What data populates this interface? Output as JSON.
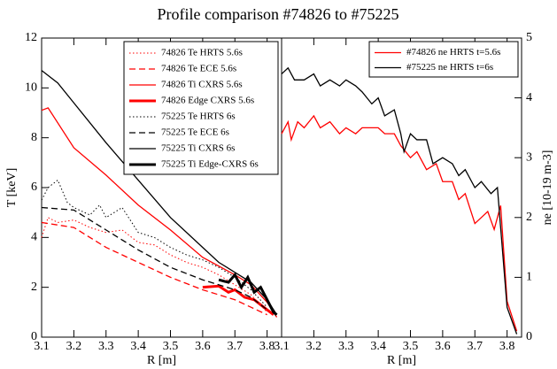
{
  "title": "Profile comparison #74826 to #75225",
  "chart_data": [
    {
      "type": "line",
      "xlabel": "R [m]",
      "ylabel": "T [keV]",
      "y_axis_side": "left",
      "legend": "upper right",
      "xlim": [
        3.1,
        3.845
      ],
      "xticks": [
        3.1,
        3.2,
        3.3,
        3.4,
        3.5,
        3.6,
        3.7,
        3.8
      ],
      "ylim": [
        0,
        12
      ],
      "yticks": [
        0,
        2,
        4,
        6,
        8,
        10,
        12
      ],
      "series": [
        {
          "name": "74826 Te HRTS 5.6s",
          "color": "#ff0000",
          "dash": "dotted",
          "width": 1,
          "x": [
            3.1,
            3.12,
            3.15,
            3.2,
            3.25,
            3.3,
            3.35,
            3.4,
            3.45,
            3.5,
            3.55,
            3.6,
            3.65,
            3.7,
            3.75,
            3.8
          ],
          "values": [
            4.0,
            4.8,
            4.6,
            4.7,
            4.4,
            4.2,
            4.3,
            3.8,
            3.7,
            3.3,
            3.0,
            2.8,
            2.5,
            2.1,
            1.7,
            1.0
          ]
        },
        {
          "name": "74826 Te ECE 5.6s",
          "color": "#ff0000",
          "dash": "dashed",
          "width": 1.3,
          "x": [
            3.1,
            3.2,
            3.3,
            3.4,
            3.5,
            3.6,
            3.7,
            3.75,
            3.8
          ],
          "values": [
            4.6,
            4.4,
            3.6,
            3.0,
            2.4,
            1.9,
            1.5,
            1.2,
            0.9
          ]
        },
        {
          "name": "74826 Ti CXRS 5.6s",
          "color": "#ff0000",
          "dash": "solid",
          "width": 1.3,
          "x": [
            3.1,
            3.12,
            3.2,
            3.3,
            3.4,
            3.5,
            3.6,
            3.7,
            3.75,
            3.8,
            3.83
          ],
          "values": [
            9.1,
            9.2,
            7.6,
            6.5,
            5.3,
            4.3,
            3.2,
            2.5,
            2.1,
            1.4,
            0.8
          ]
        },
        {
          "name": "74826 Edge CXRS 5.6s",
          "color": "#ff0000",
          "dash": "solid",
          "width": 3,
          "x": [
            3.6,
            3.65,
            3.68,
            3.7,
            3.73,
            3.76,
            3.78,
            3.8,
            3.82
          ],
          "values": [
            2.0,
            2.05,
            1.8,
            1.9,
            1.6,
            1.5,
            1.3,
            1.1,
            0.9
          ]
        },
        {
          "name": "75225 Te HRTS 6s",
          "color": "#000000",
          "dash": "dotted",
          "width": 1,
          "x": [
            3.1,
            3.12,
            3.15,
            3.18,
            3.2,
            3.25,
            3.28,
            3.3,
            3.35,
            3.4,
            3.45,
            3.5,
            3.55,
            3.6,
            3.65,
            3.7,
            3.75,
            3.8
          ],
          "values": [
            5.5,
            6.0,
            6.3,
            5.4,
            5.2,
            4.9,
            5.3,
            4.8,
            5.2,
            4.2,
            4.0,
            3.6,
            3.3,
            3.1,
            2.8,
            2.4,
            1.9,
            1.2
          ]
        },
        {
          "name": "75225 Te ECE 6s",
          "color": "#000000",
          "dash": "dashed",
          "width": 1.3,
          "x": [
            3.1,
            3.2,
            3.3,
            3.4,
            3.5,
            3.6,
            3.7,
            3.75,
            3.8
          ],
          "values": [
            5.2,
            5.1,
            4.3,
            3.5,
            2.8,
            2.3,
            1.9,
            1.6,
            1.1
          ]
        },
        {
          "name": "75225 Ti CXRS 6s",
          "color": "#000000",
          "dash": "solid",
          "width": 1.3,
          "x": [
            3.1,
            3.15,
            3.2,
            3.3,
            3.4,
            3.5,
            3.6,
            3.65,
            3.7,
            3.75,
            3.8,
            3.83
          ],
          "values": [
            10.7,
            10.2,
            9.4,
            7.8,
            6.3,
            4.8,
            3.6,
            3.0,
            2.6,
            2.2,
            1.5,
            0.9
          ]
        },
        {
          "name": "75225 Ti Edge-CXRS 6s",
          "color": "#000000",
          "dash": "solid",
          "width": 3,
          "x": [
            3.65,
            3.68,
            3.7,
            3.72,
            3.74,
            3.76,
            3.78,
            3.8,
            3.82,
            3.83
          ],
          "values": [
            2.3,
            2.2,
            2.5,
            2.0,
            2.4,
            1.8,
            2.0,
            1.5,
            1.0,
            0.9
          ]
        }
      ]
    },
    {
      "type": "line",
      "xlabel": "R [m]",
      "ylabel": "ne [10-19 m-3]",
      "y_axis_side": "right",
      "legend": "upper right",
      "xlim": [
        3.1,
        3.845
      ],
      "xticks": [
        3.1,
        3.2,
        3.3,
        3.4,
        3.5,
        3.6,
        3.7,
        3.8
      ],
      "ylim": [
        0,
        5
      ],
      "yticks": [
        0,
        1,
        2,
        3,
        4,
        5
      ],
      "series": [
        {
          "name": "#74826 ne HRTS t=5.6s",
          "color": "#ff0000",
          "dash": "solid",
          "width": 1.3,
          "x": [
            3.1,
            3.12,
            3.13,
            3.15,
            3.17,
            3.2,
            3.22,
            3.25,
            3.28,
            3.3,
            3.33,
            3.35,
            3.38,
            3.4,
            3.42,
            3.45,
            3.47,
            3.5,
            3.52,
            3.55,
            3.58,
            3.6,
            3.63,
            3.65,
            3.67,
            3.7,
            3.72,
            3.74,
            3.76,
            3.78,
            3.8,
            3.83
          ],
          "values": [
            3.4,
            3.6,
            3.3,
            3.6,
            3.5,
            3.7,
            3.5,
            3.6,
            3.4,
            3.5,
            3.4,
            3.5,
            3.5,
            3.5,
            3.4,
            3.4,
            3.2,
            3.0,
            3.1,
            2.8,
            2.9,
            2.6,
            2.6,
            2.3,
            2.4,
            1.9,
            2.0,
            2.1,
            1.8,
            2.2,
            0.6,
            0.1
          ]
        },
        {
          "name": "#75225 ne HRTS t=6s",
          "color": "#000000",
          "dash": "solid",
          "width": 1.3,
          "x": [
            3.1,
            3.12,
            3.14,
            3.17,
            3.2,
            3.22,
            3.25,
            3.28,
            3.3,
            3.33,
            3.35,
            3.38,
            3.4,
            3.42,
            3.45,
            3.47,
            3.48,
            3.5,
            3.52,
            3.55,
            3.57,
            3.6,
            3.63,
            3.65,
            3.67,
            3.7,
            3.72,
            3.75,
            3.77,
            3.8,
            3.83
          ],
          "values": [
            4.4,
            4.5,
            4.3,
            4.3,
            4.4,
            4.2,
            4.3,
            4.2,
            4.3,
            4.2,
            4.1,
            3.9,
            4.0,
            3.7,
            3.8,
            3.4,
            3.1,
            3.4,
            3.3,
            3.3,
            2.9,
            3.0,
            2.9,
            2.7,
            2.8,
            2.5,
            2.6,
            2.4,
            2.5,
            0.5,
            0.05
          ]
        }
      ]
    }
  ]
}
